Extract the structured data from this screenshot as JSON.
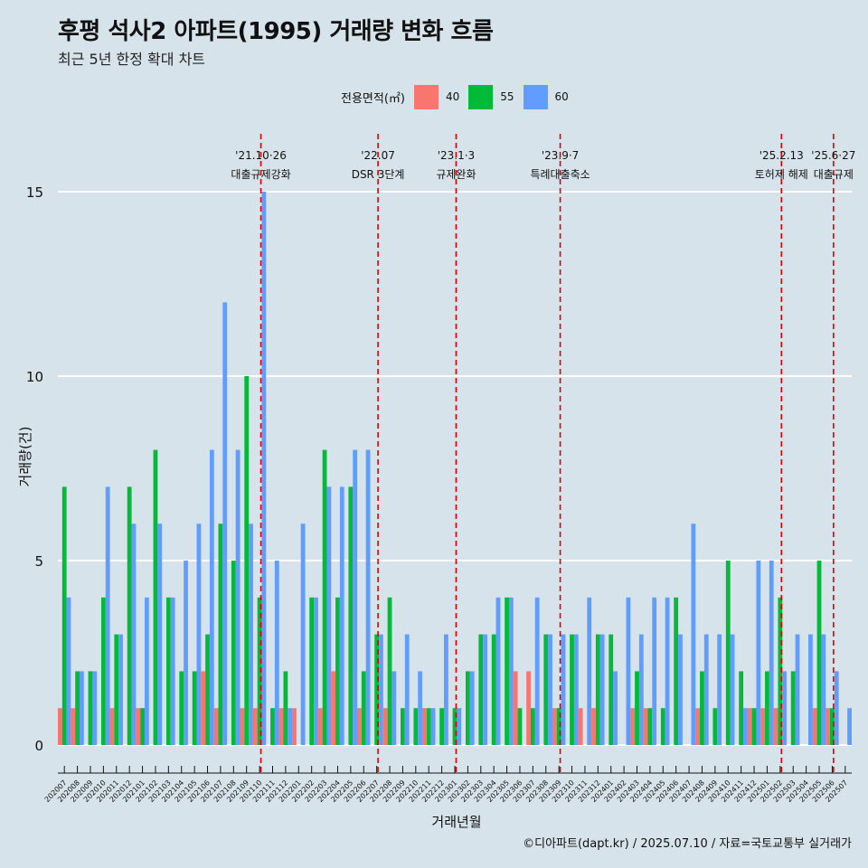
{
  "title": "후평 석사2 아파트(1995) 거래량 변화 흐름",
  "subtitle": "최근 5년 한정 확대 차트",
  "credit": "©디아파트(dapt.kr) / 2025.07.10 / 자료=국토교통부 실거래가",
  "legend": {
    "title": "전용면적(㎡)",
    "items": [
      {
        "label": "40",
        "color": "#f8766d"
      },
      {
        "label": "55",
        "color": "#00ba38"
      },
      {
        "label": "60",
        "color": "#619cff"
      }
    ]
  },
  "chart_data": {
    "type": "bar",
    "xlabel": "거래년월",
    "ylabel": "거래량(건)",
    "ylim": [
      0,
      16
    ],
    "yticks": [
      0,
      5,
      10,
      15
    ],
    "grid": "horizontal",
    "categories": [
      "202007",
      "202008",
      "202009",
      "202010",
      "202011",
      "202012",
      "202101",
      "202102",
      "202103",
      "202104",
      "202105",
      "202106",
      "202107",
      "202108",
      "202109",
      "202110",
      "202111",
      "202112",
      "202201",
      "202202",
      "202203",
      "202204",
      "202205",
      "202206",
      "202207",
      "202208",
      "202209",
      "202210",
      "202211",
      "202212",
      "202301",
      "202302",
      "202303",
      "202304",
      "202305",
      "202306",
      "202307",
      "202308",
      "202309",
      "202310",
      "202311",
      "202312",
      "202401",
      "202402",
      "202403",
      "202404",
      "202405",
      "202406",
      "202407",
      "202408",
      "202409",
      "202410",
      "202411",
      "202412",
      "202501",
      "202502",
      "202503",
      "202504",
      "202505",
      "202506",
      "202507"
    ],
    "series": [
      {
        "name": "40",
        "color": "#f8766d",
        "values": [
          1,
          1,
          0,
          0,
          1,
          0,
          1,
          0,
          0,
          0,
          0,
          2,
          1,
          0,
          1,
          1,
          0,
          1,
          1,
          0,
          1,
          2,
          0,
          1,
          0,
          1,
          0,
          0,
          1,
          0,
          0,
          0,
          0,
          0,
          0,
          2,
          2,
          0,
          1,
          0,
          1,
          1,
          0,
          0,
          1,
          1,
          0,
          0,
          0,
          1,
          0,
          0,
          0,
          1,
          1,
          1,
          0,
          0,
          1,
          1,
          0
        ]
      },
      {
        "name": "55",
        "color": "#00ba38",
        "values": [
          7,
          2,
          2,
          4,
          3,
          7,
          1,
          8,
          4,
          2,
          2,
          3,
          6,
          5,
          10,
          4,
          1,
          2,
          0,
          4,
          8,
          4,
          7,
          2,
          3,
          4,
          1,
          1,
          1,
          1,
          1,
          2,
          3,
          3,
          4,
          1,
          1,
          3,
          1,
          3,
          0,
          3,
          3,
          0,
          2,
          1,
          1,
          4,
          0,
          2,
          1,
          5,
          2,
          1,
          2,
          4,
          2,
          0,
          5,
          1,
          0
        ]
      },
      {
        "name": "60",
        "color": "#619cff",
        "values": [
          4,
          2,
          2,
          7,
          3,
          6,
          4,
          6,
          4,
          5,
          6,
          8,
          12,
          8,
          6,
          15,
          5,
          1,
          6,
          4,
          7,
          7,
          8,
          8,
          3,
          2,
          3,
          2,
          1,
          3,
          1,
          2,
          3,
          4,
          4,
          0,
          4,
          3,
          3,
          3,
          4,
          3,
          2,
          4,
          3,
          4,
          4,
          3,
          6,
          3,
          3,
          3,
          1,
          5,
          5,
          2,
          3,
          3,
          3,
          2,
          1
        ]
      }
    ],
    "events": [
      {
        "date": "'21.10·26",
        "label": "대출규제강화",
        "after": "202110"
      },
      {
        "date": "'22.07",
        "label": "DSR 3단계",
        "after": "202207"
      },
      {
        "date": "'23.1·3",
        "label": "규제완화",
        "after": "202301"
      },
      {
        "date": "'23.9·7",
        "label": "특례대출축소",
        "after": "202309"
      },
      {
        "date": "'25.2.13",
        "label": "토허제 해제",
        "after": "202502"
      },
      {
        "date": "'25.6·27",
        "label": "대출규제",
        "after": "202506"
      }
    ]
  }
}
